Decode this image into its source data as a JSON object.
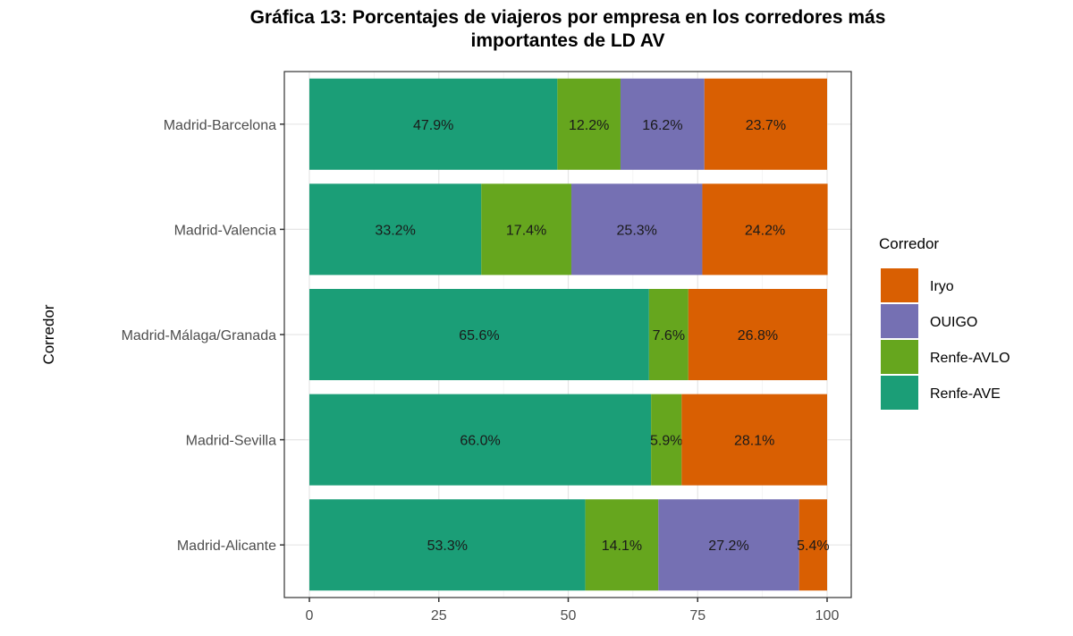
{
  "chart_data": {
    "type": "bar",
    "orientation": "horizontal",
    "stacked": true,
    "title": "Gráfica 13: Porcentajes de viajeros por empresa en los corredores más importantes de LD AV",
    "title_lines": [
      "Gráfica 13: Porcentajes de viajeros por empresa en los corredores más",
      "importantes de LD AV"
    ],
    "xlabel": "",
    "ylabel": "Corredor",
    "xlim": [
      0,
      100
    ],
    "x_ticks": [
      "0",
      "25",
      "50",
      "75",
      "100"
    ],
    "grid": true,
    "legend": {
      "title": "Corredor",
      "placement": "right",
      "entries": [
        "Iryo",
        "OUIGO",
        "Renfe-AVLO",
        "Renfe-AVE"
      ]
    },
    "categories": [
      "Madrid-Barcelona",
      "Madrid-Valencia",
      "Madrid-Málaga/Granada",
      "Madrid-Sevilla",
      "Madrid-Alicante"
    ],
    "series": [
      {
        "name": "Renfe-AVE",
        "color": "#1b9e77",
        "values": [
          47.9,
          33.2,
          65.6,
          66.0,
          53.3
        ],
        "labels": [
          "47.9%",
          "33.2%",
          "65.6%",
          "66.0%",
          "53.3%"
        ]
      },
      {
        "name": "Renfe-AVLO",
        "color": "#66a61e",
        "values": [
          12.2,
          17.4,
          7.6,
          5.9,
          14.1
        ],
        "labels": [
          "12.2%",
          "17.4%",
          "7.6%",
          "5.9%",
          "14.1%"
        ]
      },
      {
        "name": "OUIGO",
        "color": "#7570b3",
        "values": [
          16.2,
          25.3,
          0,
          0,
          27.2
        ],
        "labels": [
          "16.2%",
          "25.3%",
          "",
          "",
          "27.2%"
        ]
      },
      {
        "name": "Iryo",
        "color": "#d95f02",
        "values": [
          23.7,
          24.2,
          26.8,
          28.1,
          5.4
        ],
        "labels": [
          "23.7%",
          "24.2%",
          "26.8%",
          "28.1%",
          "5.4%"
        ]
      }
    ]
  }
}
